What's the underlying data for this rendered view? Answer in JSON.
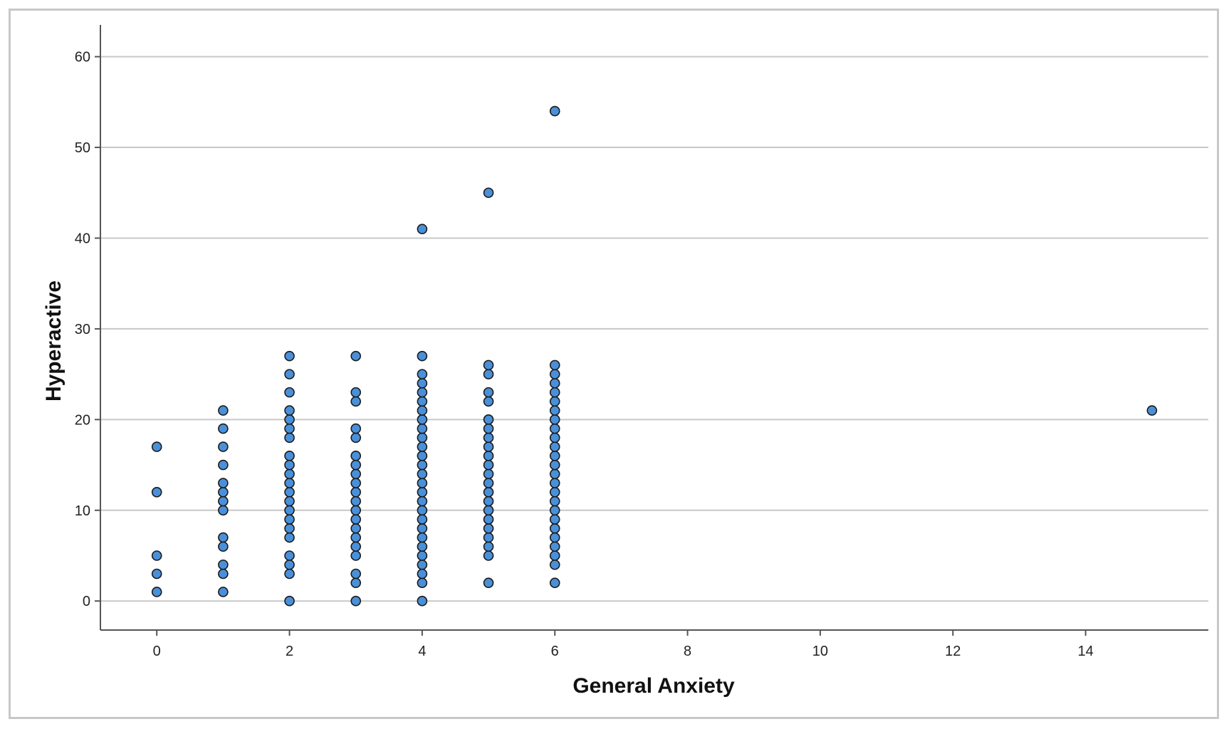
{
  "colors": {
    "marker_fill": "#4a90d9",
    "marker_stroke": "#1a1a1a",
    "gridline": "#c8c8c8",
    "axis_line": "#555555",
    "frame_border": "#c8c8c8"
  },
  "chart_data": {
    "type": "scatter",
    "title": "",
    "xlabel": "General Anxiety",
    "ylabel": "Hyperactive",
    "xlim": [
      -0.85,
      15.85
    ],
    "ylim": [
      -3.2,
      63.5
    ],
    "xticks": [
      0,
      2,
      4,
      6,
      8,
      10,
      12,
      14
    ],
    "yticks": [
      0,
      10,
      20,
      30,
      40,
      50,
      60
    ],
    "grid": {
      "horizontal": true,
      "vertical": false
    },
    "legend": "none",
    "series": [
      {
        "points": [
          [
            0,
            1
          ],
          [
            0,
            3
          ],
          [
            0,
            5
          ],
          [
            0,
            12
          ],
          [
            0,
            17
          ],
          [
            1,
            1
          ],
          [
            1,
            3
          ],
          [
            1,
            4
          ],
          [
            1,
            6
          ],
          [
            1,
            7
          ],
          [
            1,
            10
          ],
          [
            1,
            11
          ],
          [
            1,
            12
          ],
          [
            1,
            13
          ],
          [
            1,
            15
          ],
          [
            1,
            17
          ],
          [
            1,
            19
          ],
          [
            1,
            21
          ],
          [
            2,
            0
          ],
          [
            2,
            3
          ],
          [
            2,
            4
          ],
          [
            2,
            5
          ],
          [
            2,
            7
          ],
          [
            2,
            8
          ],
          [
            2,
            9
          ],
          [
            2,
            10
          ],
          [
            2,
            11
          ],
          [
            2,
            12
          ],
          [
            2,
            13
          ],
          [
            2,
            14
          ],
          [
            2,
            15
          ],
          [
            2,
            16
          ],
          [
            2,
            18
          ],
          [
            2,
            19
          ],
          [
            2,
            20
          ],
          [
            2,
            21
          ],
          [
            2,
            23
          ],
          [
            2,
            25
          ],
          [
            2,
            27
          ],
          [
            3,
            0
          ],
          [
            3,
            2
          ],
          [
            3,
            3
          ],
          [
            3,
            5
          ],
          [
            3,
            6
          ],
          [
            3,
            7
          ],
          [
            3,
            8
          ],
          [
            3,
            9
          ],
          [
            3,
            10
          ],
          [
            3,
            11
          ],
          [
            3,
            12
          ],
          [
            3,
            13
          ],
          [
            3,
            14
          ],
          [
            3,
            15
          ],
          [
            3,
            16
          ],
          [
            3,
            18
          ],
          [
            3,
            19
          ],
          [
            3,
            22
          ],
          [
            3,
            23
          ],
          [
            3,
            27
          ],
          [
            4,
            0
          ],
          [
            4,
            2
          ],
          [
            4,
            3
          ],
          [
            4,
            4
          ],
          [
            4,
            5
          ],
          [
            4,
            6
          ],
          [
            4,
            7
          ],
          [
            4,
            8
          ],
          [
            4,
            9
          ],
          [
            4,
            10
          ],
          [
            4,
            11
          ],
          [
            4,
            12
          ],
          [
            4,
            13
          ],
          [
            4,
            14
          ],
          [
            4,
            15
          ],
          [
            4,
            16
          ],
          [
            4,
            17
          ],
          [
            4,
            18
          ],
          [
            4,
            19
          ],
          [
            4,
            20
          ],
          [
            4,
            21
          ],
          [
            4,
            22
          ],
          [
            4,
            23
          ],
          [
            4,
            24
          ],
          [
            4,
            25
          ],
          [
            4,
            27
          ],
          [
            4,
            41
          ],
          [
            5,
            2
          ],
          [
            5,
            5
          ],
          [
            5,
            6
          ],
          [
            5,
            7
          ],
          [
            5,
            8
          ],
          [
            5,
            9
          ],
          [
            5,
            10
          ],
          [
            5,
            11
          ],
          [
            5,
            12
          ],
          [
            5,
            13
          ],
          [
            5,
            14
          ],
          [
            5,
            15
          ],
          [
            5,
            16
          ],
          [
            5,
            17
          ],
          [
            5,
            18
          ],
          [
            5,
            19
          ],
          [
            5,
            20
          ],
          [
            5,
            22
          ],
          [
            5,
            23
          ],
          [
            5,
            25
          ],
          [
            5,
            26
          ],
          [
            5,
            45
          ],
          [
            6,
            2
          ],
          [
            6,
            4
          ],
          [
            6,
            5
          ],
          [
            6,
            6
          ],
          [
            6,
            7
          ],
          [
            6,
            8
          ],
          [
            6,
            9
          ],
          [
            6,
            10
          ],
          [
            6,
            11
          ],
          [
            6,
            12
          ],
          [
            6,
            13
          ],
          [
            6,
            14
          ],
          [
            6,
            15
          ],
          [
            6,
            16
          ],
          [
            6,
            17
          ],
          [
            6,
            18
          ],
          [
            6,
            19
          ],
          [
            6,
            20
          ],
          [
            6,
            21
          ],
          [
            6,
            22
          ],
          [
            6,
            23
          ],
          [
            6,
            24
          ],
          [
            6,
            25
          ],
          [
            6,
            26
          ],
          [
            6,
            54
          ],
          [
            15,
            21
          ]
        ]
      }
    ]
  }
}
